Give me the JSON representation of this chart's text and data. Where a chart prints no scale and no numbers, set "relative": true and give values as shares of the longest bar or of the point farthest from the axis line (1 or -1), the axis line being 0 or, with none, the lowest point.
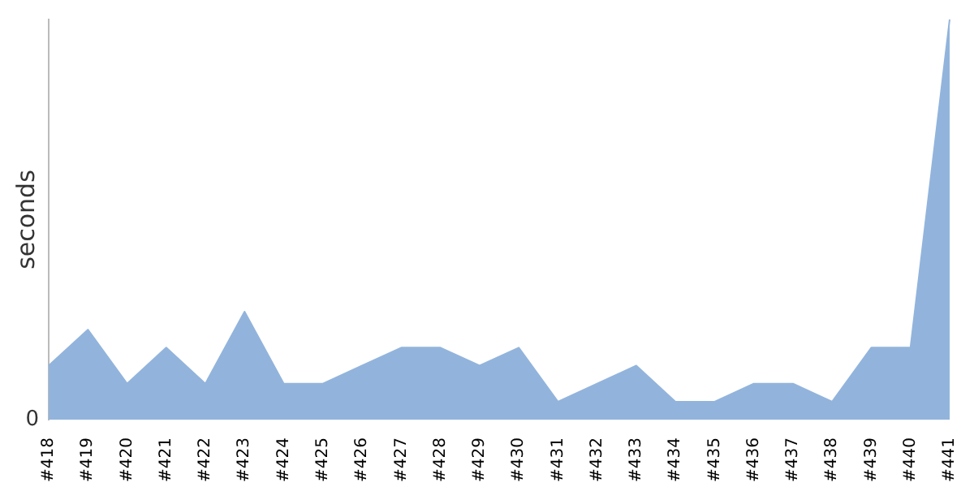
{
  "chart_data": {
    "type": "area",
    "relative": true,
    "ylabel": "seconds",
    "color": "#92b4dc",
    "legend": false,
    "categories": [
      "#418",
      "#419",
      "#420",
      "#421",
      "#422",
      "#423",
      "#424",
      "#425",
      "#426",
      "#427",
      "#428",
      "#429",
      "#430",
      "#431",
      "#432",
      "#433",
      "#434",
      "#435",
      "#436",
      "#437",
      "#438",
      "#439",
      "#440",
      "#441"
    ],
    "values": [
      0.135,
      0.225,
      0.09,
      0.18,
      0.09,
      0.27,
      0.09,
      0.09,
      0.135,
      0.18,
      0.18,
      0.135,
      0.18,
      0.045,
      0.09,
      0.135,
      0.045,
      0.045,
      0.09,
      0.09,
      0.045,
      0.18,
      0.18,
      1
    ],
    "annotations": [
      "0"
    ]
  }
}
